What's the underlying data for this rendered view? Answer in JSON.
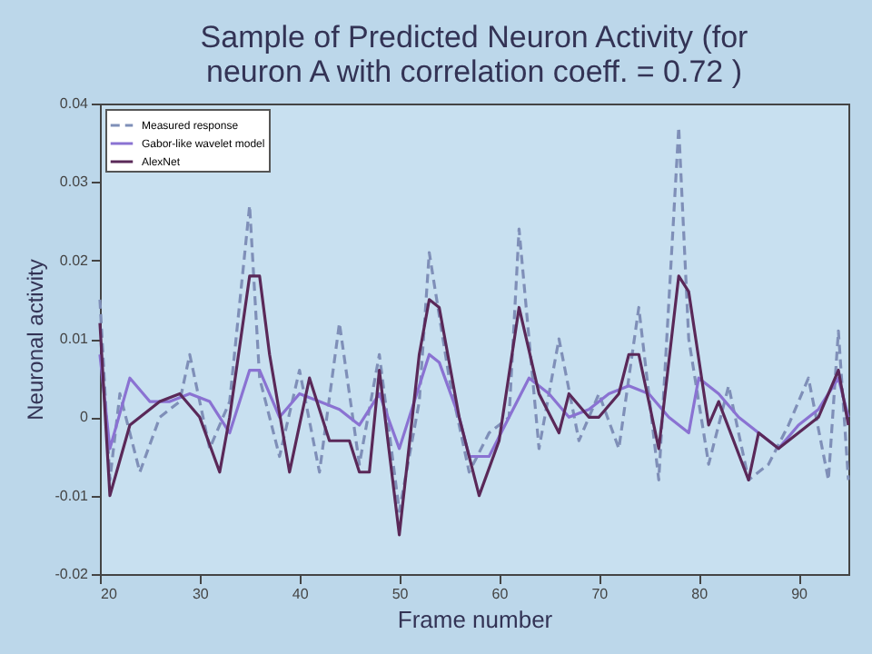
{
  "chart_data": {
    "type": "line",
    "title": [
      "Sample of Predicted Neuron Activity (for",
      "neuron A with correlation coeff. = 0.72 )"
    ],
    "xlabel": "Frame number",
    "ylabel": "Neuronal activity",
    "xlim": [
      20,
      95
    ],
    "xticks": [
      20,
      30,
      40,
      50,
      60,
      70,
      80,
      90
    ],
    "ylim": [
      -0.02,
      0.04
    ],
    "yticks": [
      -0.02,
      -0.01,
      0,
      0.01,
      0.02,
      0.03,
      0.04
    ],
    "legend": "top left",
    "grid": false,
    "series": [
      {
        "name": "Measured response",
        "color": "#7f8fb8",
        "line_style": "dashed",
        "x": [
          20,
          21,
          22,
          24,
          26,
          28,
          29,
          31,
          33,
          35,
          36,
          38,
          40,
          42,
          44,
          46,
          48,
          50,
          52,
          53,
          55,
          57,
          59,
          61,
          62,
          64,
          66,
          68,
          70,
          72,
          74,
          76,
          78,
          79,
          81,
          83,
          85,
          87,
          89,
          91,
          93,
          94,
          95
        ],
        "values": [
          0.015,
          -0.008,
          0.003,
          -0.007,
          0.0,
          0.002,
          0.008,
          -0.004,
          0.002,
          0.027,
          0.005,
          -0.005,
          0.006,
          -0.007,
          0.012,
          -0.006,
          0.008,
          -0.012,
          0.002,
          0.021,
          0.005,
          -0.007,
          -0.002,
          0.0,
          0.024,
          -0.004,
          0.01,
          -0.003,
          0.003,
          -0.004,
          0.014,
          -0.008,
          0.037,
          0.01,
          -0.006,
          0.004,
          -0.008,
          -0.006,
          -0.001,
          0.005,
          -0.008,
          0.011,
          -0.008
        ]
      },
      {
        "name": "Gabor-like wavelet model",
        "color": "#8a72d2",
        "line_style": "solid",
        "x": [
          20,
          21,
          23,
          25,
          27,
          29,
          31,
          33,
          35,
          36,
          38,
          40,
          42,
          44,
          46,
          48,
          50,
          53,
          54,
          56,
          57,
          59,
          61,
          63,
          65,
          67,
          69,
          71,
          73,
          75,
          77,
          79,
          80,
          82,
          84,
          86,
          88,
          90,
          92,
          94,
          95
        ],
        "values": [
          0.008,
          -0.004,
          0.005,
          0.002,
          0.002,
          0.003,
          0.002,
          -0.002,
          0.006,
          0.006,
          0.0,
          0.003,
          0.002,
          0.001,
          -0.001,
          0.003,
          -0.004,
          0.008,
          0.007,
          0.0,
          -0.005,
          -0.005,
          0.0,
          0.005,
          0.003,
          0.0,
          0.001,
          0.003,
          0.004,
          0.003,
          0.0,
          -0.002,
          0.005,
          0.003,
          0.0,
          -0.002,
          -0.004,
          -0.001,
          0.001,
          0.005,
          0.0
        ]
      },
      {
        "name": "AlexNet",
        "color": "#5a2858",
        "line_style": "solid",
        "x": [
          20,
          21,
          23,
          26,
          28,
          30,
          32,
          33,
          35,
          36,
          37,
          39,
          41,
          43,
          45,
          46,
          47,
          48,
          50,
          52,
          53,
          54,
          56,
          58,
          60,
          62,
          64,
          66,
          67,
          69,
          70,
          72,
          73,
          74,
          76,
          78,
          79,
          81,
          82,
          85,
          86,
          88,
          90,
          92,
          94,
          95
        ],
        "values": [
          0.012,
          -0.01,
          -0.001,
          0.002,
          0.003,
          0.0,
          -0.007,
          0.0,
          0.018,
          0.018,
          0.008,
          -0.007,
          0.005,
          -0.003,
          -0.003,
          -0.007,
          -0.007,
          0.006,
          -0.015,
          0.008,
          0.015,
          0.014,
          0.0,
          -0.01,
          -0.003,
          0.014,
          0.003,
          -0.002,
          0.003,
          0.0,
          0.0,
          0.003,
          0.008,
          0.008,
          -0.004,
          0.018,
          0.016,
          -0.001,
          0.002,
          -0.008,
          -0.002,
          -0.004,
          -0.002,
          0.0,
          0.006,
          -0.001
        ]
      }
    ]
  }
}
